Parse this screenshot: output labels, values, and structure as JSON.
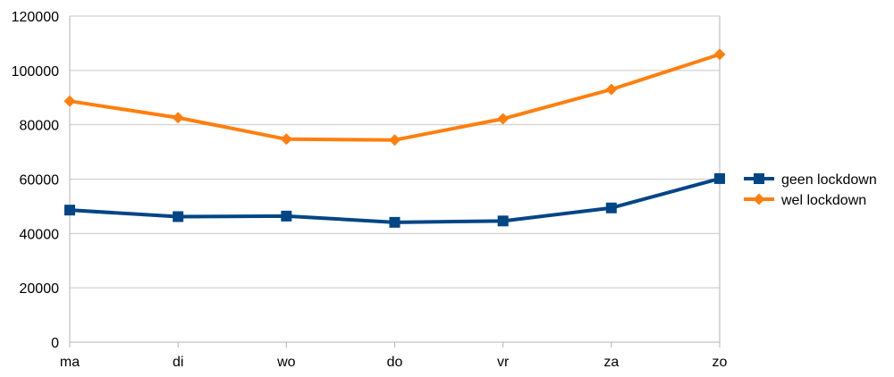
{
  "chart_data": {
    "type": "line",
    "categories": [
      "ma",
      "di",
      "wo",
      "do",
      "vr",
      "za",
      "zo"
    ],
    "ylim": [
      0,
      120000
    ],
    "yticks": [
      0,
      20000,
      40000,
      60000,
      80000,
      100000,
      120000
    ],
    "ytick_labels": [
      "0",
      "20000",
      "40000",
      "60000",
      "80000",
      "100000",
      "120000"
    ],
    "grid": true,
    "legend_position": "right",
    "series": [
      {
        "name": "geen lockdown",
        "color": "#004586",
        "marker": "square",
        "values": [
          48600,
          46200,
          46400,
          44100,
          44600,
          49400,
          60200
        ]
      },
      {
        "name": "wel lockdown",
        "color": "#ff7f0e",
        "marker": "diamond",
        "values": [
          88700,
          82600,
          74700,
          74400,
          82200,
          93000,
          105900
        ]
      }
    ]
  }
}
